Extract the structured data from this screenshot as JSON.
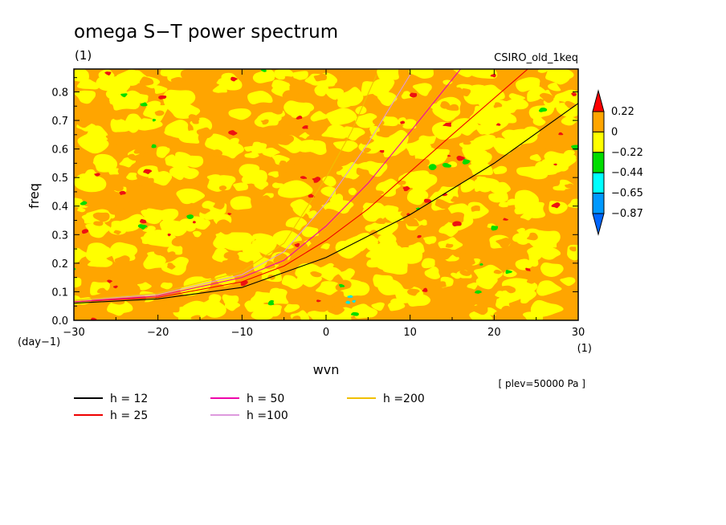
{
  "chart_data": {
    "type": "heatmap",
    "title": "omega S−T power spectrum",
    "units_label": "(1)",
    "model_label": "CSIRO_old_1keq",
    "xlabel": "wvn",
    "x_unit": "(1)",
    "ylabel": "freq",
    "y_unit": "(day−1)",
    "footnote": "[ plev=50000 Pa ]",
    "xlim": [
      -30,
      30
    ],
    "ylim": [
      0,
      0.88
    ],
    "x_ticks": [
      -30,
      -20,
      -10,
      0,
      10,
      20,
      30
    ],
    "x_tick_labels": [
      "−30",
      "−20",
      "−10",
      "0",
      "10",
      "20",
      "30"
    ],
    "y_ticks": [
      0,
      0.1,
      0.2,
      0.3,
      0.4,
      0.5,
      0.6,
      0.7,
      0.8
    ],
    "y_tick_labels": [
      "0.0",
      "0.1",
      "0.2",
      "0.3",
      "0.4",
      "0.5",
      "0.6",
      "0.7",
      "0.8"
    ],
    "colorbar": {
      "labels": [
        "0.22",
        "0",
        "−0.22",
        "−0.44",
        "−0.65",
        "−0.87"
      ],
      "colors": [
        "#ff0000",
        "#ffa500",
        "#ffff00",
        "#00dd00",
        "#00ffff",
        "#0099ff",
        "#0066ff"
      ]
    },
    "field_colors": {
      "high": "#ffa500",
      "mid": "#ffff00",
      "peak": "#ee1111",
      "low": "#00dd00",
      "lowest": "#00e5e5"
    },
    "series": [
      {
        "name": "h = 12",
        "color": "#000000",
        "x": [
          -30,
          -20,
          -10,
          0,
          10,
          20,
          30
        ],
        "y": [
          0.06,
          0.075,
          0.115,
          0.22,
          0.37,
          0.55,
          0.76
        ]
      },
      {
        "name": "h = 25",
        "color": "#ee0000",
        "x": [
          -30,
          -20,
          -10,
          -5,
          0,
          5,
          10,
          15,
          24
        ],
        "y": [
          0.065,
          0.08,
          0.135,
          0.19,
          0.28,
          0.39,
          0.52,
          0.65,
          0.88
        ]
      },
      {
        "name": "h = 50",
        "color": "#ee00aa",
        "x": [
          -30,
          -20,
          -10,
          -5,
          0,
          5,
          10,
          16
        ],
        "y": [
          0.065,
          0.085,
          0.15,
          0.21,
          0.33,
          0.48,
          0.66,
          0.88
        ]
      },
      {
        "name": "h =100",
        "color": "#dd99dd",
        "x": [
          -30,
          -20,
          -10,
          -5,
          0,
          5,
          10
        ],
        "y": [
          0.07,
          0.09,
          0.16,
          0.24,
          0.41,
          0.62,
          0.86
        ]
      },
      {
        "name": "h =200",
        "color": "#f0c000",
        "x": [
          -30,
          -20,
          -10,
          -5,
          0,
          3,
          6
        ],
        "y": [
          0.07,
          0.095,
          0.17,
          0.27,
          0.5,
          0.66,
          0.86
        ]
      }
    ]
  }
}
